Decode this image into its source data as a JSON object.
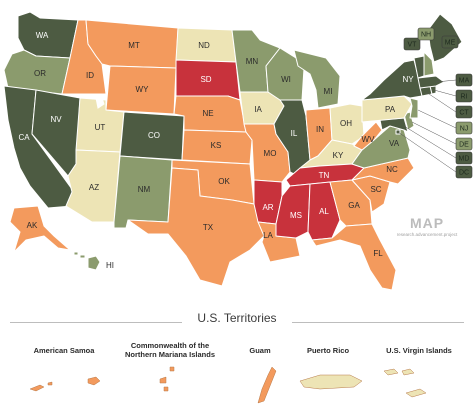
{
  "colors": {
    "dark_green": "#4d5b42",
    "sage": "#8b9b6d",
    "cream": "#ede4b5",
    "orange": "#f39a5d",
    "red": "#c8323c",
    "border": "#ffffff"
  },
  "states": {
    "WA": {
      "label": "WA",
      "color": "dark_green"
    },
    "OR": {
      "label": "OR",
      "color": "sage"
    },
    "CA": {
      "label": "CA",
      "color": "dark_green"
    },
    "NV": {
      "label": "NV",
      "color": "dark_green"
    },
    "ID": {
      "label": "ID",
      "color": "orange"
    },
    "MT": {
      "label": "MT",
      "color": "orange"
    },
    "WY": {
      "label": "WY",
      "color": "orange"
    },
    "UT": {
      "label": "UT",
      "color": "cream"
    },
    "AZ": {
      "label": "AZ",
      "color": "cream"
    },
    "CO": {
      "label": "CO",
      "color": "dark_green"
    },
    "NM": {
      "label": "NM",
      "color": "sage"
    },
    "ND": {
      "label": "ND",
      "color": "cream"
    },
    "SD": {
      "label": "SD",
      "color": "red"
    },
    "NE": {
      "label": "NE",
      "color": "orange"
    },
    "KS": {
      "label": "KS",
      "color": "orange"
    },
    "OK": {
      "label": "OK",
      "color": "orange"
    },
    "TX": {
      "label": "TX",
      "color": "orange"
    },
    "MN": {
      "label": "MN",
      "color": "sage"
    },
    "IA": {
      "label": "IA",
      "color": "cream"
    },
    "MO": {
      "label": "MO",
      "color": "orange"
    },
    "AR": {
      "label": "AR",
      "color": "red"
    },
    "LA": {
      "label": "LA",
      "color": "orange"
    },
    "WI": {
      "label": "WI",
      "color": "sage"
    },
    "IL": {
      "label": "IL",
      "color": "dark_green"
    },
    "MI": {
      "label": "MI",
      "color": "sage"
    },
    "IN": {
      "label": "IN",
      "color": "orange"
    },
    "OH": {
      "label": "OH",
      "color": "cream"
    },
    "KY": {
      "label": "KY",
      "color": "cream"
    },
    "TN": {
      "label": "TN",
      "color": "red"
    },
    "MS": {
      "label": "MS",
      "color": "red"
    },
    "AL": {
      "label": "AL",
      "color": "red"
    },
    "GA": {
      "label": "GA",
      "color": "orange"
    },
    "FL": {
      "label": "FL",
      "color": "orange"
    },
    "SC": {
      "label": "SC",
      "color": "orange"
    },
    "NC": {
      "label": "NC",
      "color": "orange"
    },
    "VA": {
      "label": "VA",
      "color": "sage"
    },
    "WV": {
      "label": "WV",
      "color": "orange"
    },
    "PA": {
      "label": "PA",
      "color": "cream"
    },
    "NY": {
      "label": "NY",
      "color": "dark_green"
    },
    "VT": {
      "label": "VT",
      "color": "dark_green"
    },
    "NH": {
      "label": "NH",
      "color": "sage"
    },
    "ME": {
      "label": "ME",
      "color": "dark_green"
    },
    "MA": {
      "label": "MA",
      "color": "dark_green"
    },
    "RI": {
      "label": "RI",
      "color": "dark_green"
    },
    "CT": {
      "label": "CT",
      "color": "dark_green"
    },
    "NJ": {
      "label": "NJ",
      "color": "sage"
    },
    "DE": {
      "label": "DE",
      "color": "sage"
    },
    "MD": {
      "label": "MD",
      "color": "dark_green"
    },
    "DC": {
      "label": "DC",
      "color": "dark_green"
    },
    "AK": {
      "label": "AK",
      "color": "orange"
    },
    "HI": {
      "label": "HI",
      "color": "sage"
    }
  },
  "logo": {
    "text": "MAP",
    "subtext": "research.advancement.project"
  },
  "territories": {
    "title": "U.S. Territories",
    "items": [
      {
        "name": "American Samoa",
        "color": "orange"
      },
      {
        "name": "Commonwealth of the Northern Mariana Islands",
        "color": "orange"
      },
      {
        "name": "Guam",
        "color": "orange"
      },
      {
        "name": "Puerto Rico",
        "color": "cream"
      },
      {
        "name": "U.S. Virgin Islands",
        "color": "cream"
      }
    ]
  }
}
